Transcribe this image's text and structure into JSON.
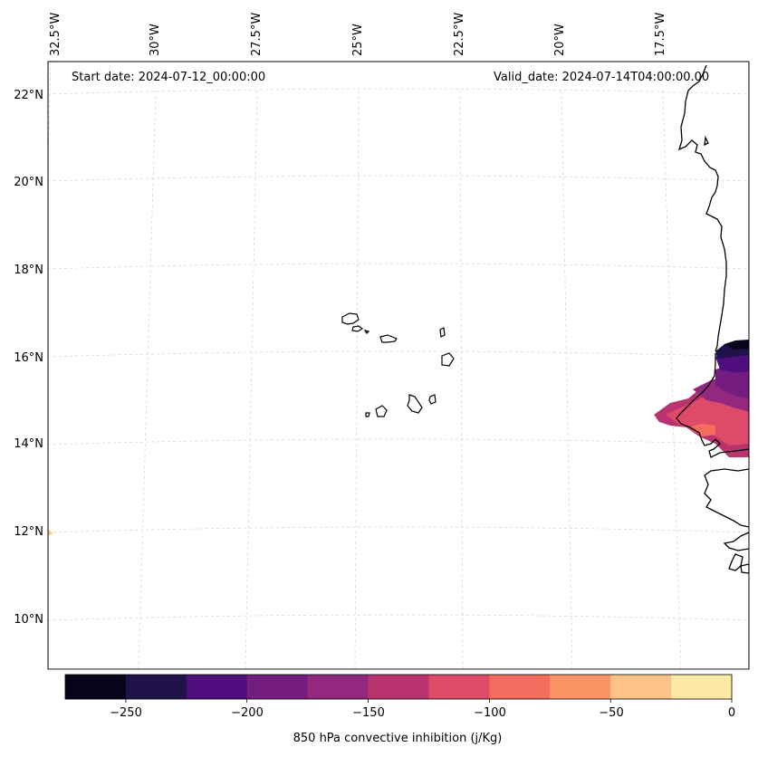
{
  "header": {
    "start_date": "Start date: 2024-07-12_00:00:00",
    "valid_date": "Valid_date: 2024-07-14T04:00:00.00"
  },
  "longitude_labels": [
    "32.5°W",
    "30°W",
    "27.5°W",
    "25°W",
    "22.5°W",
    "20°W",
    "17.5°W"
  ],
  "latitude_labels": [
    "22°N",
    "20°N",
    "18°N",
    "16°N",
    "14°N",
    "12°N",
    "10°N"
  ],
  "colorbar": {
    "title": "850 hPa convective inhibition (j/Kg)",
    "ticks": [
      "−250",
      "−200",
      "−150",
      "−100",
      "−50",
      "0"
    ],
    "colors": [
      "#050418",
      "#201349",
      "#4e0f7c",
      "#751c81",
      "#93297f",
      "#b9336f",
      "#dd4b68",
      "#f46c5e",
      "#fc9466",
      "#fec186",
      "#fee8a5"
    ]
  },
  "colors": {
    "frame": "#000000",
    "gridline": "#cccccc",
    "coastline": "#000000"
  }
}
